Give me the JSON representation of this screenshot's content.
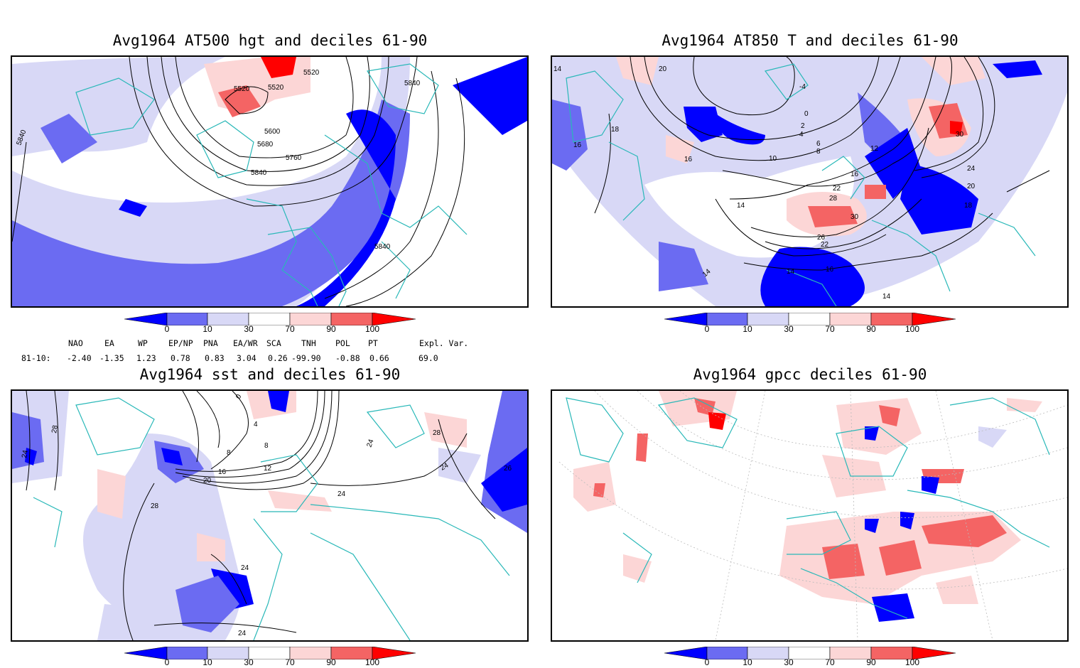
{
  "panels": [
    {
      "title": "Avg1964 AT500 hgt and deciles 61-90",
      "contour_labels": [
        "5520",
        "5520",
        "5520",
        "5600",
        "5680",
        "5760",
        "5840",
        "5840",
        "5840",
        "5840"
      ]
    },
    {
      "title": "Avg1964 AT850 T and deciles 61-90",
      "contour_labels": [
        "14",
        "16",
        "16",
        "18",
        "20",
        "22",
        "26",
        "28",
        "30",
        "30",
        "10",
        "0",
        "-4",
        "2",
        "4",
        "6",
        "8",
        "12",
        "16",
        "18",
        "20",
        "22",
        "24",
        "14",
        "14",
        "14",
        "16",
        "14"
      ]
    },
    {
      "title": "Avg1964 sst and deciles 61-90",
      "contour_labels": [
        "28",
        "24",
        "28",
        "24",
        "24",
        "20",
        "16",
        "12",
        "8",
        "8",
        "4",
        "0",
        "28",
        "26",
        "24",
        "24",
        "24"
      ]
    },
    {
      "title": "Avg1964 gpcc deciles 61-90",
      "contour_labels": []
    }
  ],
  "colorbar": {
    "ticks": [
      "0",
      "10",
      "30",
      "70",
      "90",
      "100"
    ],
    "colors": [
      "#0000ff",
      "#6b6bf2",
      "#d8d8f6",
      "#ffffff",
      "#fcd6d6",
      "#f46464",
      "#ff0000"
    ]
  },
  "indices": {
    "headers": [
      "NAO",
      "EA",
      "WP",
      "EP/NP",
      "PNA",
      "EA/WR",
      "SCA",
      "TNH",
      "POL",
      "PT",
      "Expl. Var."
    ],
    "row_label": "81-10:",
    "values": [
      "-2.40",
      "-1.35",
      "1.23",
      "0.78",
      "0.83",
      "3.04",
      "0.26",
      "-99.90",
      "-0.88",
      "0.66",
      "69.0"
    ]
  },
  "palette": {
    "coast": "#29b8b8",
    "blue_dark": "#0000ff",
    "blue_mid": "#6b6bf2",
    "blue_light": "#d8d8f6",
    "red_light": "#fcd6d6",
    "red_mid": "#f46464",
    "red_dark": "#ff0000"
  }
}
